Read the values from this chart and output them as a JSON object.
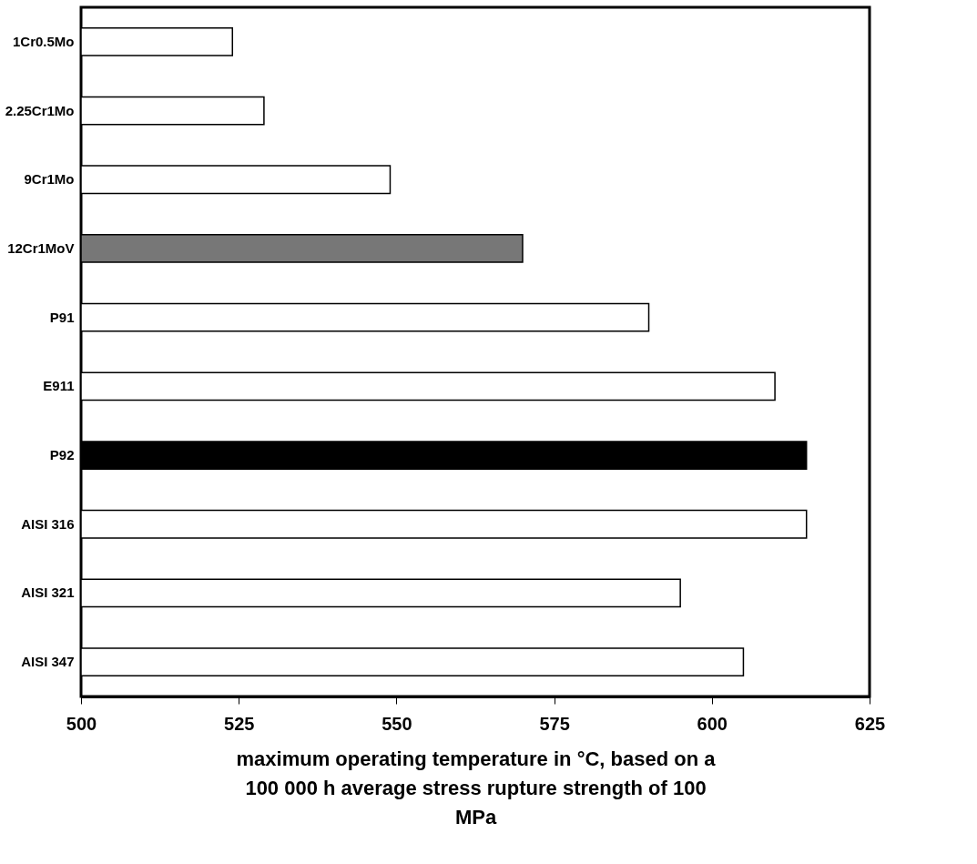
{
  "chart_data": {
    "type": "bar",
    "orientation": "horizontal",
    "xlabel": "maximum operating temperature in °C, based on a 100 000 h average stress rupture strength of 100 MPa",
    "categories": [
      "1Cr0.5Mo",
      "2.25Cr1Mo",
      "9Cr1Mo",
      "12Cr1MoV",
      "P91",
      "E911",
      "P92",
      "AISI 316",
      "AISI 321",
      "AISI 347"
    ],
    "values": [
      524,
      529,
      549,
      570,
      590,
      610,
      615,
      615,
      595,
      605
    ],
    "colors": [
      "#ffffff",
      "#ffffff",
      "#ffffff",
      "#777777",
      "#ffffff",
      "#ffffff",
      "#000000",
      "#ffffff",
      "#ffffff",
      "#ffffff"
    ],
    "xlim": [
      500,
      625
    ],
    "xticks": [
      500,
      525,
      550,
      575,
      600,
      625
    ],
    "grid": false
  }
}
